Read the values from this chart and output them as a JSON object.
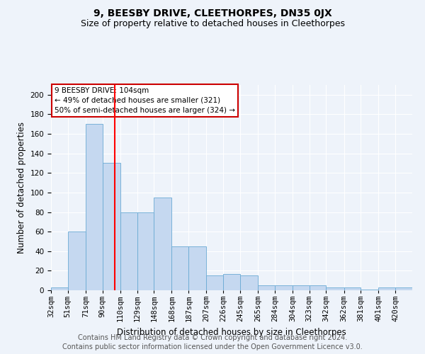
{
  "title": "9, BEESBY DRIVE, CLEETHORPES, DN35 0JX",
  "subtitle": "Size of property relative to detached houses in Cleethorpes",
  "xlabel": "Distribution of detached houses by size in Cleethorpes",
  "ylabel": "Number of detached properties",
  "footer1": "Contains HM Land Registry data © Crown copyright and database right 2024.",
  "footer2": "Contains public sector information licensed under the Open Government Licence v3.0.",
  "annotation_title": "9 BEESBY DRIVE: 104sqm",
  "annotation_line1": "← 49% of detached houses are smaller (321)",
  "annotation_line2": "50% of semi-detached houses are larger (324) →",
  "bar_color": "#c5d8f0",
  "bar_edge_color": "#6aaad4",
  "red_line_x": 104,
  "categories": [
    "32sqm",
    "51sqm",
    "71sqm",
    "90sqm",
    "110sqm",
    "129sqm",
    "148sqm",
    "168sqm",
    "187sqm",
    "207sqm",
    "226sqm",
    "245sqm",
    "265sqm",
    "284sqm",
    "304sqm",
    "323sqm",
    "342sqm",
    "362sqm",
    "381sqm",
    "401sqm",
    "420sqm"
  ],
  "bin_edges": [
    32,
    51,
    71,
    90,
    110,
    129,
    148,
    168,
    187,
    207,
    226,
    245,
    265,
    284,
    304,
    323,
    342,
    362,
    381,
    401,
    420,
    439
  ],
  "values": [
    3,
    60,
    170,
    130,
    80,
    80,
    95,
    45,
    45,
    15,
    17,
    15,
    5,
    5,
    5,
    5,
    3,
    3,
    1,
    3,
    3
  ],
  "ylim": [
    0,
    210
  ],
  "yticks": [
    0,
    20,
    40,
    60,
    80,
    100,
    120,
    140,
    160,
    180,
    200
  ],
  "background_color": "#eef3fa",
  "grid_color": "#ffffff",
  "annotation_box_color": "#ffffff",
  "annotation_box_edge": "#cc0000",
  "title_fontsize": 10,
  "subtitle_fontsize": 9,
  "axis_label_fontsize": 8.5,
  "tick_fontsize": 7.5,
  "footer_fontsize": 7
}
